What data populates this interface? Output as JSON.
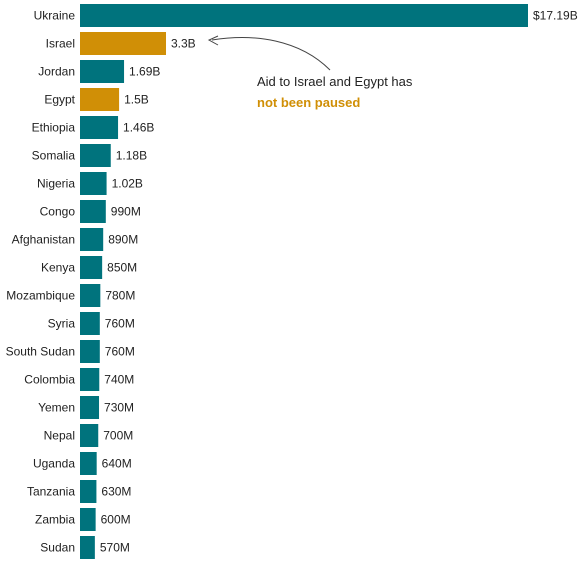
{
  "chart_data": {
    "type": "bar",
    "orientation": "horizontal",
    "categories": [
      "Ukraine",
      "Israel",
      "Jordan",
      "Egypt",
      "Ethiopia",
      "Somalia",
      "Nigeria",
      "Congo",
      "Afghanistan",
      "Kenya",
      "Mozambique",
      "Syria",
      "South Sudan",
      "Colombia",
      "Yemen",
      "Nepal",
      "Uganda",
      "Tanzania",
      "Zambia",
      "Sudan"
    ],
    "values": [
      17.19,
      3.3,
      1.69,
      1.5,
      1.46,
      1.18,
      1.02,
      0.99,
      0.89,
      0.85,
      0.78,
      0.76,
      0.76,
      0.74,
      0.73,
      0.7,
      0.64,
      0.63,
      0.6,
      0.57
    ],
    "value_labels": [
      "$17.19B",
      "3.3B",
      "1.69B",
      "1.5B",
      "1.46B",
      "1.18B",
      "1.02B",
      "990M",
      "890M",
      "850M",
      "780M",
      "760M",
      "760M",
      "740M",
      "730M",
      "700M",
      "640M",
      "630M",
      "600M",
      "570M"
    ],
    "highlighted": [
      "Israel",
      "Egypt"
    ],
    "unit": "billions of dollars",
    "xlim": [
      0,
      17.19
    ],
    "grid": false,
    "legend": "none",
    "colors": {
      "default": "#00737d",
      "highlight": "#d08f06"
    },
    "annotation": {
      "target": "Israel",
      "line1": "Aid to Israel and Egypt has",
      "line2": "not been paused"
    }
  }
}
